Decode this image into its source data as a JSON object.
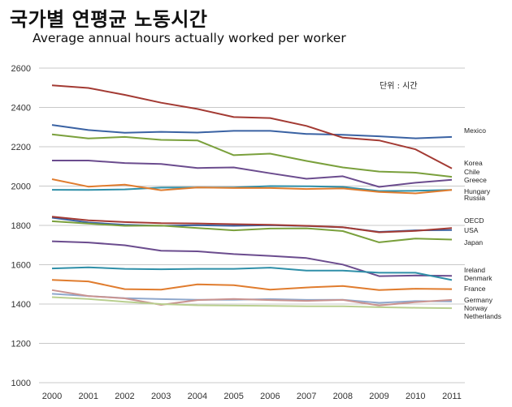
{
  "title": "국가별 연평균 노동시간",
  "subtitle": "Average annual hours actually worked per worker",
  "chart_data": {
    "type": "line",
    "title": "국가별 연평균 노동시간",
    "subtitle": "Average annual hours actually worked per worker",
    "unit_note": "단위 : 시간",
    "x": [
      "2000",
      "2001",
      "2002",
      "2003",
      "2004",
      "2005",
      "2006",
      "2007",
      "2008",
      "2009",
      "2010",
      "2011"
    ],
    "ylim": [
      1000,
      2600
    ],
    "yticks": [
      1000,
      1200,
      1400,
      1600,
      1800,
      2000,
      2200,
      2400,
      2600
    ],
    "grid": true,
    "series": [
      {
        "name": "Mexico",
        "color": "#3a62a3",
        "values": [
          2311,
          2285,
          2271,
          2276,
          2272,
          2281,
          2281,
          2265,
          2261,
          2253,
          2243,
          2250
        ]
      },
      {
        "name": "Korea",
        "color": "#a33a33",
        "values": [
          2512,
          2499,
          2464,
          2424,
          2392,
          2351,
          2346,
          2306,
          2246,
          2232,
          2187,
          2090
        ]
      },
      {
        "name": "Chile",
        "color": "#7aa03c",
        "values": [
          2263,
          2242,
          2250,
          2235,
          2232,
          2157,
          2165,
          2128,
          2095,
          2074,
          2068,
          2047
        ]
      },
      {
        "name": "Greece",
        "color": "#6b4c8e",
        "values": [
          2130,
          2130,
          2117,
          2112,
          2092,
          2095,
          2065,
          2037,
          2050,
          1996,
          2017,
          2032
        ]
      },
      {
        "name": "Hungary",
        "color": "#2f8fa8",
        "values": [
          1981,
          1980,
          1983,
          1992,
          1993,
          1993,
          2000,
          1999,
          1996,
          1975,
          1976,
          1980
        ]
      },
      {
        "name": "Russia",
        "color": "#e07c2e",
        "values": [
          2035,
          1997,
          2007,
          1979,
          1993,
          1990,
          1990,
          1985,
          1988,
          1970,
          1963,
          1980
        ]
      },
      {
        "name": "OECD",
        "color": "#3a62a3",
        "values": [
          1839,
          1815,
          1803,
          1798,
          1801,
          1798,
          1801,
          1797,
          1790,
          1767,
          1775,
          1776
        ]
      },
      {
        "name": "USA",
        "color": "#a33a33",
        "values": [
          1844,
          1826,
          1817,
          1811,
          1810,
          1806,
          1803,
          1798,
          1791,
          1765,
          1772,
          1787
        ]
      },
      {
        "name": "Japan",
        "color": "#7aa03c",
        "values": [
          1821,
          1809,
          1798,
          1799,
          1787,
          1775,
          1784,
          1785,
          1771,
          1714,
          1733,
          1728
        ]
      },
      {
        "name": "Ireland",
        "color": "#6b4c8e",
        "values": [
          1719,
          1713,
          1699,
          1671,
          1668,
          1654,
          1645,
          1634,
          1601,
          1542,
          1545,
          1543
        ]
      },
      {
        "name": "Denmark",
        "color": "#2f8fa8",
        "values": [
          1581,
          1587,
          1579,
          1577,
          1579,
          1579,
          1585,
          1570,
          1570,
          1559,
          1559,
          1522
        ]
      },
      {
        "name": "France",
        "color": "#e07c2e",
        "values": [
          1523,
          1515,
          1476,
          1473,
          1500,
          1496,
          1473,
          1484,
          1492,
          1471,
          1478,
          1476
        ]
      },
      {
        "name": "Germany",
        "color": "#8fa8cc",
        "values": [
          1452,
          1441,
          1430,
          1425,
          1422,
          1422,
          1425,
          1421,
          1422,
          1406,
          1415,
          1413
        ]
      },
      {
        "name": "Norway",
        "color": "#c99390",
        "values": [
          1471,
          1441,
          1429,
          1396,
          1420,
          1426,
          1420,
          1416,
          1421,
          1393,
          1410,
          1421
        ]
      },
      {
        "name": "Netherlands",
        "color": "#b9cf8f",
        "values": [
          1435,
          1426,
          1411,
          1400,
          1394,
          1392,
          1391,
          1389,
          1389,
          1384,
          1381,
          1379
        ]
      }
    ]
  }
}
